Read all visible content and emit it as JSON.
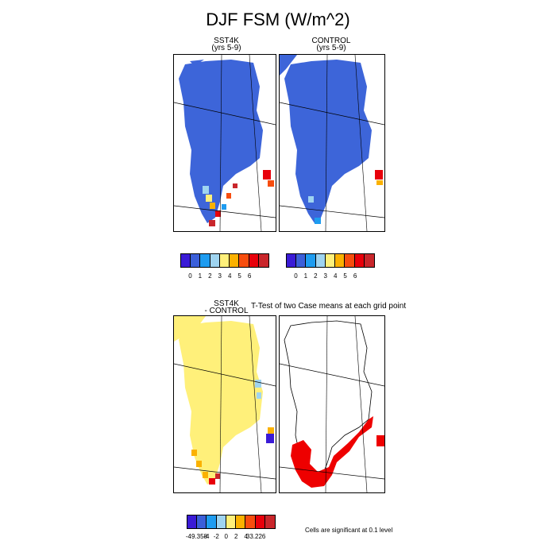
{
  "title": "DJF FSM (W/m^2)",
  "panels": [
    {
      "title_line1": "SST4K",
      "title_line2": "(yrs 5-9)"
    },
    {
      "title_line1": "CONTROL",
      "title_line2": "(yrs 5-9)"
    },
    {
      "title_line1": "SST4K",
      "title_line2": "- CONTROL"
    }
  ],
  "ttest_title": "T-Test of two Case means at each grid point",
  "colorbar_top": {
    "colors": [
      "#3a1bd6",
      "#3b5fd9",
      "#1e9cf0",
      "#9fd4f0",
      "#fff07a",
      "#fbb100",
      "#f74d0e",
      "#e8000b",
      "#c9262b"
    ],
    "tick_labels": [
      "0",
      "1",
      "2",
      "3",
      "4",
      "5",
      "6"
    ]
  },
  "colorbar_diff": {
    "colors": [
      "#3a1bd6",
      "#3b5fd9",
      "#1e9cf0",
      "#9fd4f0",
      "#fff07a",
      "#fbb100",
      "#f74d0e",
      "#e8000b",
      "#c9262b"
    ],
    "tick_labels": [
      "-49.358",
      "-4",
      "-2",
      "0",
      "2",
      "4",
      "33.226"
    ]
  },
  "significance_note": "Cells are significant at 0.1 level",
  "significance_color": "#ee0000"
}
